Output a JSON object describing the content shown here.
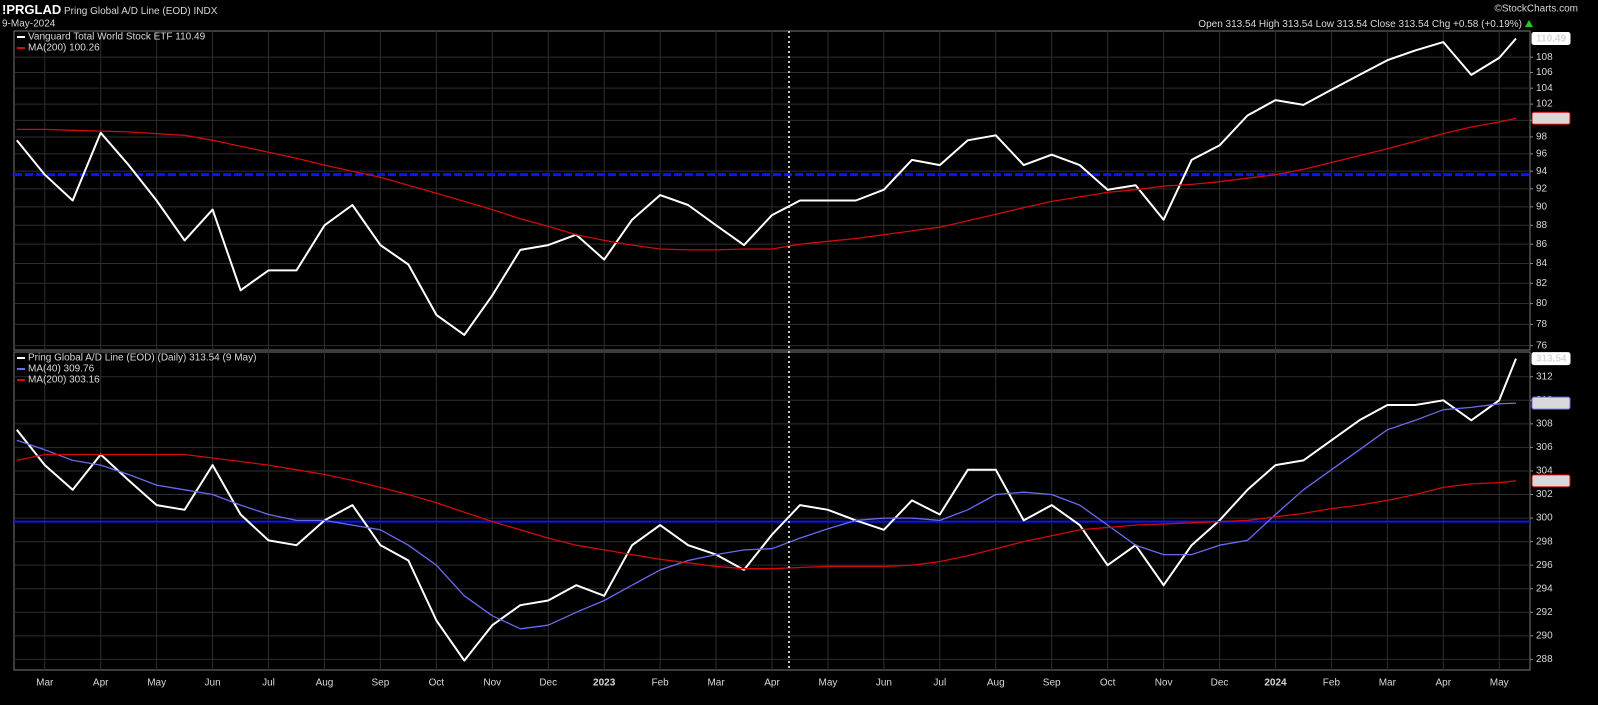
{
  "header": {
    "symbol": "!PRGLAD",
    "name": "Pring Global A/D Line (EOD)",
    "exchange": "INDX",
    "date": "9-May-2024",
    "source": "©StockCharts.com",
    "quote": {
      "open_label": "Open",
      "open": 313.54,
      "high_label": "High",
      "high": 313.54,
      "low_label": "Low",
      "low": 313.54,
      "close_label": "Close",
      "close": 313.54,
      "change_label": "Chg",
      "change": "+0.58",
      "change_pct": "(+0.19%)"
    }
  },
  "chart_data": [
    {
      "type": "line",
      "log": true,
      "x": [
        -0.5,
        0,
        0.5,
        1,
        1.5,
        2,
        2.5,
        3,
        3.5,
        4,
        4.5,
        5,
        5.5,
        6,
        6.5,
        7,
        7.5,
        8,
        8.5,
        9,
        9.5,
        10,
        10.5,
        11,
        11.5,
        12,
        12.5,
        13,
        13.5,
        14,
        14.5,
        15,
        15.5,
        16,
        16.5,
        17,
        17.5,
        18,
        18.5,
        19,
        19.5,
        20,
        20.5,
        21,
        21.5,
        22,
        22.5,
        23,
        23.5,
        24,
        24.5,
        25,
        25.5,
        26,
        26.3
      ],
      "xlim": [
        -0.55,
        26.55
      ],
      "ylim": [
        75.6,
        111.5
      ],
      "yticks": [
        76,
        78,
        80,
        82,
        84,
        86,
        88,
        90,
        92,
        94,
        96,
        98,
        100,
        102,
        104,
        106,
        108
      ],
      "hline": {
        "value": 93.6,
        "color": "#0a14ff",
        "dashed": true
      },
      "series": [
        {
          "name": "Vanguard Total World Stock ETF 110.49",
          "color": "#ffffff",
          "values": [
            97.6,
            93.6,
            90.7,
            98.5,
            94.7,
            90.7,
            86.4,
            89.7,
            81.3,
            83.3,
            83.3,
            88.0,
            90.2,
            85.9,
            83.9,
            78.9,
            77.0,
            80.8,
            85.4,
            85.9,
            87.0,
            84.4,
            88.6,
            91.3,
            90.2,
            88.0,
            85.9,
            89.1,
            90.7,
            90.7,
            90.7,
            91.9,
            95.3,
            94.7,
            97.6,
            98.2,
            94.7,
            95.9,
            94.7,
            91.9,
            92.4,
            88.6,
            95.3,
            97.0,
            100.6,
            102.5,
            101.9,
            103.8,
            105.7,
            107.6,
            108.9,
            110.0,
            105.7,
            107.9,
            110.49
          ]
        },
        {
          "name": "MA(200) 100.26",
          "color": "#d10a0a",
          "values": [
            98.9,
            98.9,
            98.8,
            98.7,
            98.6,
            98.4,
            98.2,
            97.6,
            96.9,
            96.2,
            95.5,
            94.7,
            94.0,
            93.3,
            92.4,
            91.5,
            90.6,
            89.7,
            88.7,
            87.9,
            87.0,
            86.4,
            85.9,
            85.5,
            85.4,
            85.4,
            85.5,
            85.5,
            86.0,
            86.3,
            86.6,
            87.0,
            87.4,
            87.8,
            88.5,
            89.2,
            89.9,
            90.6,
            91.1,
            91.6,
            91.9,
            92.3,
            92.5,
            92.8,
            93.2,
            93.6,
            94.2,
            95.0,
            95.8,
            96.6,
            97.5,
            98.4,
            99.2,
            99.8,
            100.26
          ]
        }
      ]
    },
    {
      "type": "line",
      "log": false,
      "x": [
        -0.5,
        0,
        0.5,
        1,
        1.5,
        2,
        2.5,
        3,
        3.5,
        4,
        4.5,
        5,
        5.5,
        6,
        6.5,
        7,
        7.5,
        8,
        8.5,
        9,
        9.5,
        10,
        10.5,
        11,
        11.5,
        12,
        12.5,
        13,
        13.5,
        14,
        14.5,
        15,
        15.5,
        16,
        16.5,
        17,
        17.5,
        18,
        18.5,
        19,
        19.5,
        20,
        20.5,
        21,
        21.5,
        22,
        22.5,
        23,
        23.5,
        24,
        24.5,
        25,
        25.5,
        26,
        26.3
      ],
      "xlim": [
        -0.55,
        26.55
      ],
      "ylim": [
        287.1,
        314.1
      ],
      "yticks": [
        288,
        290,
        292,
        294,
        296,
        298,
        300,
        302,
        304,
        306,
        308,
        310,
        312
      ],
      "xticks": [
        {
          "value": 0,
          "label": "Mar"
        },
        {
          "value": 1,
          "label": "Apr"
        },
        {
          "value": 2,
          "label": "May"
        },
        {
          "value": 3,
          "label": "Jun"
        },
        {
          "value": 4,
          "label": "Jul"
        },
        {
          "value": 5,
          "label": "Aug"
        },
        {
          "value": 6,
          "label": "Sep"
        },
        {
          "value": 7,
          "label": "Oct"
        },
        {
          "value": 8,
          "label": "Nov"
        },
        {
          "value": 9,
          "label": "Dec"
        },
        {
          "value": 10,
          "label": "2023"
        },
        {
          "value": 11,
          "label": "Feb"
        },
        {
          "value": 12,
          "label": "Mar"
        },
        {
          "value": 13,
          "label": "Apr"
        },
        {
          "value": 14,
          "label": "May"
        },
        {
          "value": 15,
          "label": "Jun"
        },
        {
          "value": 16,
          "label": "Jul"
        },
        {
          "value": 17,
          "label": "Aug"
        },
        {
          "value": 18,
          "label": "Sep"
        },
        {
          "value": 19,
          "label": "Oct"
        },
        {
          "value": 20,
          "label": "Nov"
        },
        {
          "value": 21,
          "label": "Dec"
        },
        {
          "value": 22,
          "label": "2024"
        },
        {
          "value": 23,
          "label": "Feb"
        },
        {
          "value": 24,
          "label": "Mar"
        },
        {
          "value": 25,
          "label": "Apr"
        },
        {
          "value": 26,
          "label": "May"
        }
      ],
      "hline": {
        "value": 299.7,
        "color": "#0a14ff",
        "dashed": false
      },
      "series": [
        {
          "name": "Pring Global A/D Line (EOD) (Daily) 313.54 (9 May)",
          "color": "#ffffff",
          "values": [
            307.5,
            304.5,
            302.4,
            305.4,
            303.2,
            301.1,
            300.7,
            304.5,
            300.3,
            298.1,
            297.7,
            299.8,
            301.1,
            297.7,
            296.4,
            291.3,
            287.9,
            290.9,
            292.6,
            293.0,
            294.3,
            293.4,
            297.7,
            299.4,
            297.7,
            296.9,
            295.6,
            298.6,
            301.1,
            300.7,
            299.8,
            299.0,
            301.5,
            300.3,
            304.1,
            304.1,
            299.8,
            301.1,
            299.4,
            296.0,
            297.7,
            294.3,
            297.7,
            299.8,
            302.4,
            304.5,
            304.9,
            306.6,
            308.3,
            309.6,
            309.6,
            310.0,
            308.3,
            310.0,
            313.54
          ]
        },
        {
          "name": "MA(40) 309.76",
          "color": "#6a6af0",
          "values": [
            306.6,
            305.8,
            304.9,
            304.5,
            303.7,
            302.8,
            302.4,
            302.0,
            301.1,
            300.3,
            299.8,
            299.8,
            299.4,
            299.0,
            297.7,
            296.0,
            293.4,
            291.7,
            290.6,
            290.9,
            292.0,
            293.0,
            294.3,
            295.6,
            296.4,
            296.9,
            297.3,
            297.4,
            298.3,
            299.1,
            299.8,
            300.0,
            300.0,
            299.8,
            300.7,
            302.0,
            302.2,
            302.0,
            301.1,
            299.4,
            297.7,
            296.9,
            296.9,
            297.7,
            298.1,
            300.3,
            302.4,
            304.1,
            305.8,
            307.5,
            308.3,
            309.2,
            309.4,
            309.7,
            309.76
          ]
        },
        {
          "name": "MA(200) 303.16",
          "color": "#d10a0a",
          "values": [
            304.9,
            305.4,
            305.4,
            305.4,
            305.4,
            305.4,
            305.4,
            305.1,
            304.8,
            304.5,
            304.1,
            303.7,
            303.2,
            302.6,
            302.0,
            301.3,
            300.5,
            299.7,
            299.0,
            298.3,
            297.7,
            297.3,
            296.9,
            296.5,
            296.2,
            295.9,
            295.7,
            295.7,
            295.8,
            295.9,
            295.9,
            295.9,
            296.0,
            296.3,
            296.8,
            297.4,
            298.0,
            298.5,
            299.0,
            299.2,
            299.4,
            299.5,
            299.6,
            299.7,
            299.8,
            300.1,
            300.4,
            300.8,
            301.1,
            301.5,
            302.0,
            302.6,
            302.9,
            303.0,
            303.16
          ]
        }
      ]
    }
  ]
}
